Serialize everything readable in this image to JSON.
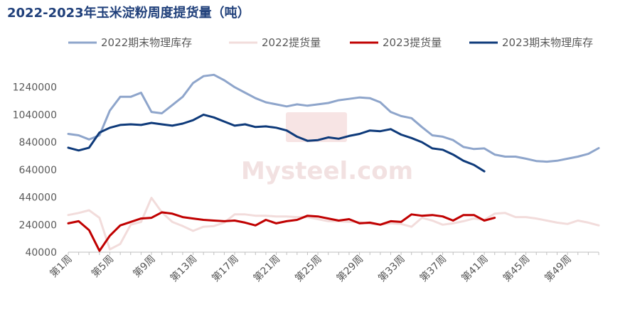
{
  "chart_data": {
    "type": "line",
    "title": "2022-2023年玉米淀粉周度提货量（吨）",
    "xlabel": "",
    "ylabel": "",
    "ylim": [
      40000,
      1440000
    ],
    "yticks": [
      40000,
      240000,
      440000,
      640000,
      840000,
      1040000,
      1240000
    ],
    "ytick_labels": [
      "40000",
      "240000",
      "440000",
      "640000",
      "840000",
      "1040000",
      "1240000"
    ],
    "xtick_labels": [
      "第1周",
      "第5周",
      "第9周",
      "第13周",
      "第17周",
      "第21周",
      "第25周",
      "第29周",
      "第33周",
      "第37周",
      "第41周",
      "第45周",
      "第49周"
    ],
    "legend_position": "top",
    "grid": false,
    "watermark": "Mysteel.com",
    "series": [
      {
        "name": "2022期末物理库存",
        "color": "#8ea5cb",
        "values": [
          900000,
          890000,
          860000,
          890000,
          1070000,
          1170000,
          1170000,
          1200000,
          1060000,
          1050000,
          1110000,
          1170000,
          1270000,
          1320000,
          1330000,
          1290000,
          1240000,
          1200000,
          1160000,
          1130000,
          1115000,
          1100000,
          1115000,
          1105000,
          1115000,
          1125000,
          1145000,
          1155000,
          1165000,
          1160000,
          1130000,
          1060000,
          1030000,
          1015000,
          950000,
          890000,
          880000,
          855000,
          805000,
          790000,
          795000,
          750000,
          735000,
          735000,
          720000,
          703000,
          698000,
          705000,
          720000,
          735000,
          755000,
          797000
        ]
      },
      {
        "name": "2022提货量",
        "color": "#f2dcdb",
        "values": [
          310000,
          325000,
          345000,
          290000,
          60000,
          100000,
          240000,
          260000,
          435000,
          330000,
          260000,
          230000,
          195000,
          225000,
          230000,
          255000,
          315000,
          315000,
          305000,
          305000,
          300000,
          300000,
          295000,
          295000,
          280000,
          265000,
          265000,
          260000,
          260000,
          245000,
          240000,
          250000,
          245000,
          225000,
          290000,
          270000,
          240000,
          250000,
          265000,
          285000,
          275000,
          320000,
          325000,
          295000,
          295000,
          285000,
          270000,
          255000,
          245000,
          270000,
          255000,
          235000
        ]
      },
      {
        "name": "2023提货量",
        "color": "#c00000",
        "values": [
          250000,
          265000,
          200000,
          50000,
          160000,
          235000,
          260000,
          285000,
          290000,
          330000,
          320000,
          295000,
          285000,
          275000,
          270000,
          265000,
          270000,
          255000,
          235000,
          275000,
          250000,
          265000,
          275000,
          305000,
          300000,
          285000,
          270000,
          280000,
          250000,
          255000,
          240000,
          265000,
          260000,
          315000,
          305000,
          310000,
          300000,
          270000,
          310000,
          310000,
          270000,
          290000
        ]
      },
      {
        "name": "2023期末物理库存",
        "color": "#0e3a7a",
        "values": [
          800000,
          780000,
          800000,
          910000,
          945000,
          965000,
          970000,
          965000,
          980000,
          970000,
          960000,
          975000,
          1000000,
          1040000,
          1020000,
          990000,
          960000,
          970000,
          950000,
          955000,
          945000,
          925000,
          880000,
          850000,
          855000,
          875000,
          865000,
          885000,
          900000,
          925000,
          920000,
          935000,
          895000,
          870000,
          840000,
          795000,
          785000,
          750000,
          705000,
          675000,
          628000
        ]
      }
    ]
  }
}
